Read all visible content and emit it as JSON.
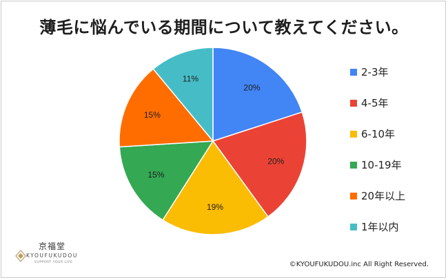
{
  "title": "薄毛に悩んでいる期間について教えてください。",
  "chart_data": {
    "type": "pie",
    "title": "薄毛に悩んでいる期間について教えてください。",
    "start_angle_deg": 0,
    "direction": "clockwise",
    "legend_position": "right",
    "slices": [
      {
        "label": "2-3年",
        "value": 20,
        "display": "20%",
        "color": "#4285f4"
      },
      {
        "label": "4-5年",
        "value": 20,
        "display": "20%",
        "color": "#ea4335"
      },
      {
        "label": "6-10年",
        "value": 19,
        "display": "19%",
        "color": "#fbbc04"
      },
      {
        "label": "10-19年",
        "value": 15,
        "display": "15%",
        "color": "#34a853"
      },
      {
        "label": "20年以上",
        "value": 15,
        "display": "15%",
        "color": "#ff6d01"
      },
      {
        "label": "1年以内",
        "value": 11,
        "display": "11%",
        "color": "#46bdc6"
      }
    ]
  },
  "logo": {
    "name": "京福堂",
    "sub": "KYOUFUKUDOU",
    "tagline": "SUPPORT YOUR LIFE"
  },
  "copyright": "©KYOUFUKUDOU.inc All Right Reserved."
}
